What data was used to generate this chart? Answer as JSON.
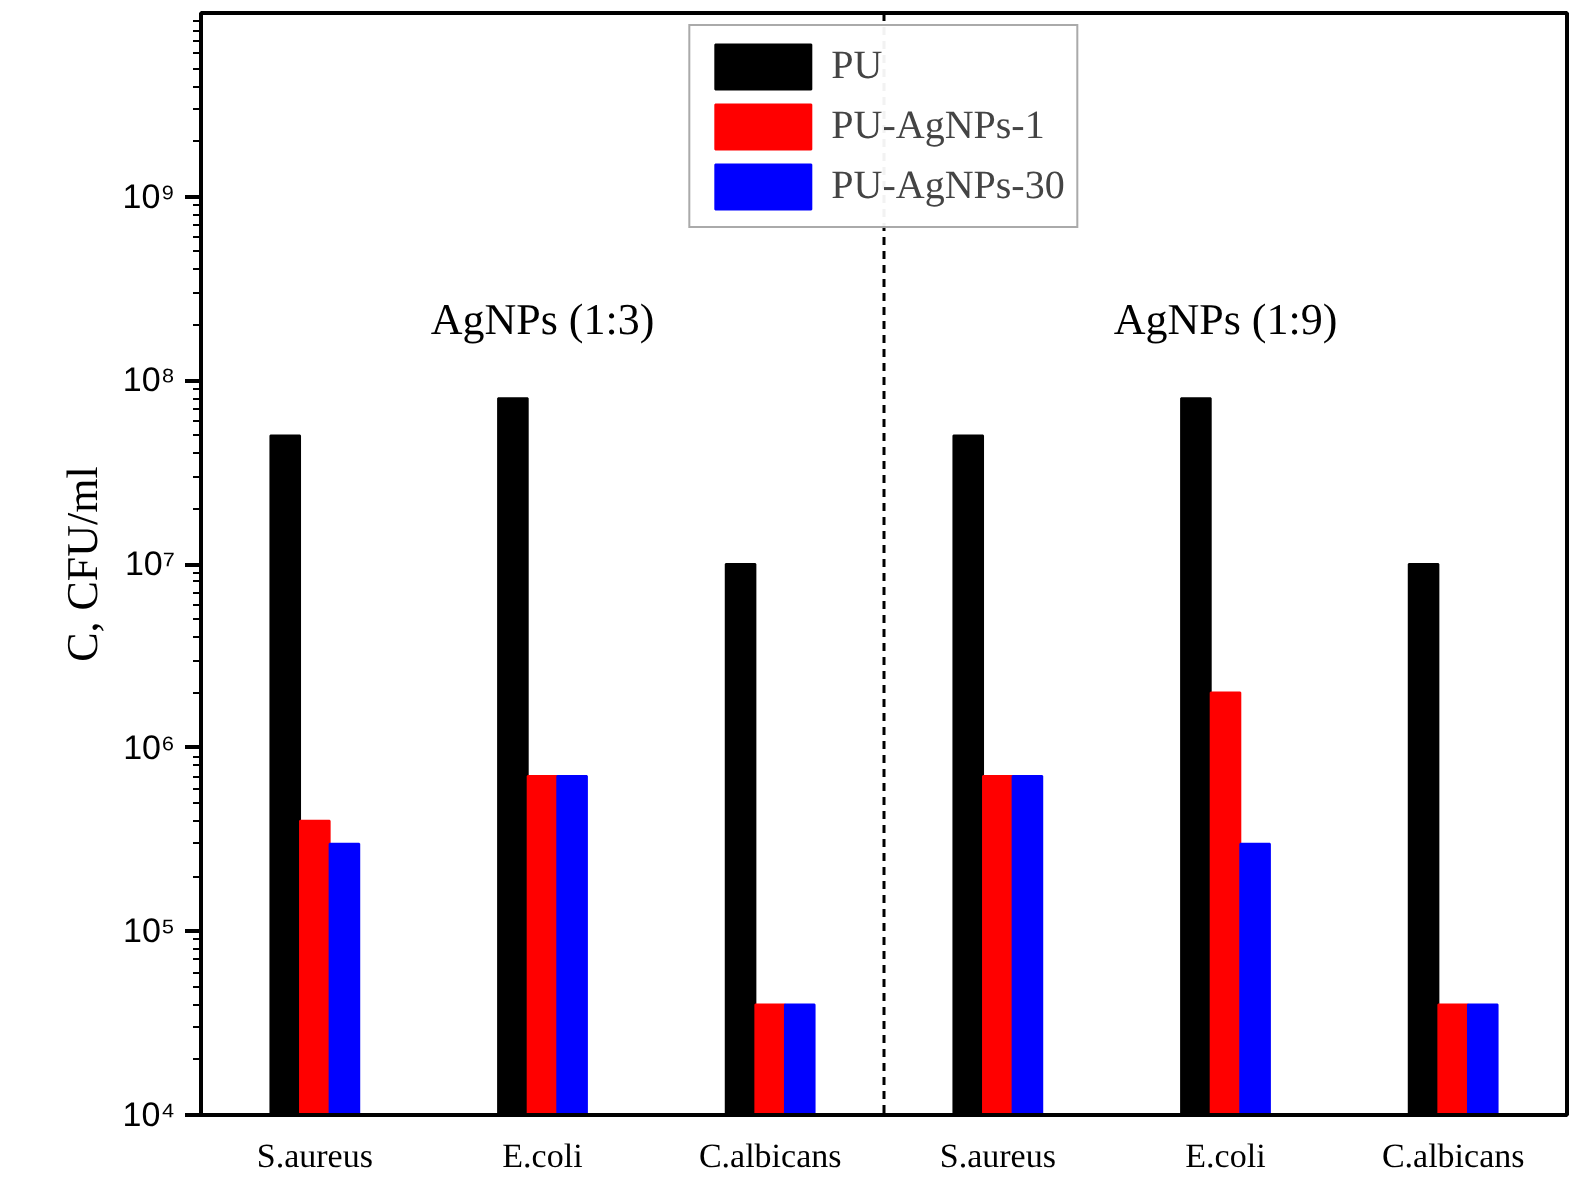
{
  "chart_data": {
    "type": "bar",
    "ylabel": "C, CFU/ml",
    "categories": [
      "S.aureus",
      "E.coli",
      "C.albicans",
      "S.aureus",
      "E.coli",
      "C.albicans"
    ],
    "series": [
      {
        "name": "PU",
        "color": "#000000",
        "values": [
          50000000,
          80000000,
          10000000,
          50000000,
          80000000,
          10000000
        ]
      },
      {
        "name": "PU-AgNPs-1",
        "color": "#ff0000",
        "values": [
          400000,
          700000,
          40000,
          700000,
          2000000,
          40000
        ]
      },
      {
        "name": "PU-AgNPs-30",
        "color": "#0000ff",
        "values": [
          300000,
          700000,
          40000,
          700000,
          300000,
          40000
        ]
      }
    ],
    "log": "y",
    "ylim": [
      10000,
      10000000000
    ],
    "yticks": [
      {
        "value": 10000,
        "label": "10⁴"
      },
      {
        "value": 100000,
        "label": "10⁵"
      },
      {
        "value": 1000000,
        "label": "10⁶"
      },
      {
        "value": 10000000,
        "label": "10⁷"
      },
      {
        "value": 100000000,
        "label": "10⁸"
      },
      {
        "value": 1000000000,
        "label": "10⁹"
      }
    ],
    "annotations": [
      "AgNPs (1:3)",
      "AgNPs (1:9)"
    ],
    "legend": "top",
    "grid": false
  }
}
